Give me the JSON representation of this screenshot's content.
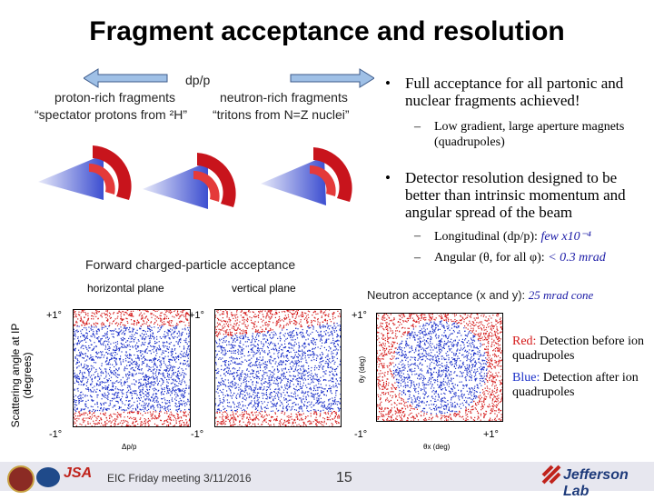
{
  "title": "Fragment acceptance and resolution",
  "diagram": {
    "dp_label": "dp/p",
    "left_label": "proton-rich fragments",
    "left_sub": "“spectator protons from ²H”",
    "right_label": "neutron-rich fragments",
    "right_sub": "“tritons from N=Z nuclei”"
  },
  "bullets": {
    "b1": "Full acceptance for all partonic and nuclear fragments achieved!",
    "b1_sub": "Low gradient, large aperture magnets (quadrupoles)",
    "b2": "Detector resolution designed to be better than intrinsic momentum and angular spread of the beam",
    "b2_sub1_text": "Longitudinal (dp/p): ",
    "b2_sub1_val": "few x10⁻⁴",
    "b2_sub2_text": "Angular (θ, for all φ): ",
    "b2_sub2_val": "< 0.3 mrad"
  },
  "plots": {
    "forward_title": "Forward charged-particle acceptance",
    "horizontal": "horizontal plane",
    "vertical": "vertical plane",
    "neutron_text": "Neutron acceptance (x and y): ",
    "neutron_val": "25 mrad cone",
    "y_axis": "Scattering angle at IP (degrees)",
    "plus1": "+1°",
    "minus1": "-1°",
    "xlab_dpp": "Δp/p",
    "xlab_ang": "θx (deg)",
    "ylab_ang": "θy (deg)"
  },
  "legend": {
    "red_word": "Red:",
    "red_rest": " Detection before ion quadrupoles",
    "blue_word": "Blue:",
    "blue_rest": " Detection after ion quadrupoles"
  },
  "footer": {
    "meeting": "EIC Friday meeting 3/11/2016",
    "page": "15",
    "lab": "Jefferson Lab",
    "logo": "JSA"
  },
  "colors": {
    "red": "#d41818",
    "blue": "#1a2fc8",
    "magnet": "#c8141c"
  }
}
